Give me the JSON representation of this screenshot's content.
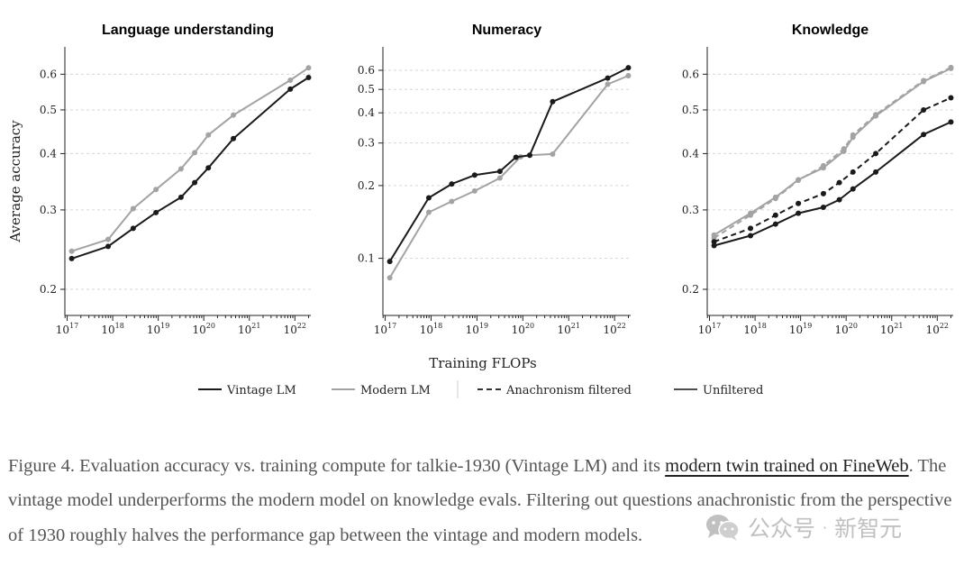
{
  "figure": {
    "shared_xlabel": "Training FLOPs",
    "legend": [
      {
        "label": "Vintage LM",
        "style": "solid",
        "color": "#1a1a1a"
      },
      {
        "label": "Modern LM",
        "style": "solid",
        "color": "#a3a3a3"
      },
      {
        "label": "Anachronism filtered",
        "style": "dashed",
        "color": "#333333"
      },
      {
        "label": "Unfiltered",
        "style": "solid",
        "color": "#4d4d4d"
      }
    ]
  },
  "chart_data": [
    {
      "type": "line",
      "title": "Language understanding",
      "xlabel": "Training FLOPs",
      "ylabel": "Average accuracy",
      "xscale": "log10",
      "yscale": "log",
      "xlim_log10": [
        16.95,
        22.35
      ],
      "ylim": [
        0.175,
        0.69
      ],
      "yticks": [
        0.2,
        0.3,
        0.4,
        0.5,
        0.6
      ],
      "ytick_labels": [
        "0.2",
        "0.3",
        "0.4",
        "0.5",
        "0.6"
      ],
      "xticks_log10": [
        17,
        18,
        19,
        20,
        21,
        22
      ],
      "xtick_base": "10",
      "xtick_exponents": [
        "17",
        "18",
        "19",
        "20",
        "21",
        "22"
      ],
      "grid": "horizontal dashed",
      "series": [
        {
          "name": "Modern LM",
          "color": "#a3a3a3",
          "dash": "solid",
          "x_log10": [
            17.1,
            17.9,
            18.45,
            18.95,
            19.5,
            19.8,
            20.1,
            20.65,
            21.9,
            22.3
          ],
          "values": [
            0.243,
            0.258,
            0.302,
            0.333,
            0.37,
            0.402,
            0.44,
            0.487,
            0.582,
            0.62
          ]
        },
        {
          "name": "Vintage LM",
          "color": "#1a1a1a",
          "dash": "solid",
          "x_log10": [
            17.1,
            17.9,
            18.45,
            18.95,
            19.5,
            19.8,
            20.1,
            20.65,
            21.9,
            22.3
          ],
          "values": [
            0.234,
            0.249,
            0.273,
            0.296,
            0.32,
            0.345,
            0.372,
            0.432,
            0.556,
            0.59
          ]
        }
      ]
    },
    {
      "type": "line",
      "title": "Numeracy",
      "xlabel": "Training FLOPs",
      "ylabel": "",
      "xscale": "log10",
      "yscale": "log",
      "xlim_log10": [
        16.95,
        22.35
      ],
      "ylim": [
        0.058,
        0.75
      ],
      "yticks": [
        0.1,
        0.2,
        0.3,
        0.4,
        0.5,
        0.6
      ],
      "ytick_labels": [
        "0.1",
        "0.2",
        "0.3",
        "0.4",
        "0.5",
        "0.6"
      ],
      "xticks_log10": [
        17,
        18,
        19,
        20,
        21,
        22
      ],
      "xtick_base": "10",
      "xtick_exponents": [
        "17",
        "18",
        "19",
        "20",
        "21",
        "22"
      ],
      "grid": "horizontal dashed",
      "series": [
        {
          "name": "Modern LM",
          "color": "#a3a3a3",
          "dash": "solid",
          "x_log10": [
            17.1,
            17.95,
            18.45,
            18.95,
            19.5,
            19.95,
            20.15,
            20.65,
            21.85,
            22.3
          ],
          "values": [
            0.083,
            0.155,
            0.172,
            0.19,
            0.215,
            0.263,
            0.267,
            0.27,
            0.525,
            0.57
          ]
        },
        {
          "name": "Vintage LM",
          "color": "#1a1a1a",
          "dash": "solid",
          "x_log10": [
            17.1,
            17.95,
            18.45,
            18.95,
            19.5,
            19.85,
            20.15,
            20.65,
            21.85,
            22.3
          ],
          "values": [
            0.097,
            0.178,
            0.203,
            0.221,
            0.229,
            0.262,
            0.267,
            0.445,
            0.557,
            0.615
          ]
        }
      ]
    },
    {
      "type": "line",
      "title": "Knowledge",
      "xlabel": "Training FLOPs",
      "ylabel": "",
      "xscale": "log10",
      "yscale": "log",
      "xlim_log10": [
        16.95,
        22.35
      ],
      "ylim": [
        0.175,
        0.69
      ],
      "yticks": [
        0.2,
        0.3,
        0.4,
        0.5,
        0.6
      ],
      "ytick_labels": [
        "0.2",
        "0.3",
        "0.4",
        "0.5",
        "0.6"
      ],
      "xticks_log10": [
        17,
        18,
        19,
        20,
        21,
        22
      ],
      "xtick_base": "10",
      "xtick_exponents": [
        "17",
        "18",
        "19",
        "20",
        "21",
        "22"
      ],
      "grid": "horizontal dashed",
      "series": [
        {
          "name": "Modern LM, Unfiltered",
          "color": "#a3a3a3",
          "dash": "solid",
          "x_log10": [
            17.1,
            17.9,
            18.45,
            18.95,
            19.5,
            19.95,
            20.15,
            20.65,
            21.7,
            22.3
          ],
          "values": [
            0.264,
            0.295,
            0.32,
            0.35,
            0.372,
            0.405,
            0.435,
            0.485,
            0.578,
            0.618
          ]
        },
        {
          "name": "Modern LM, Anachronism filtered",
          "color": "#a3a3a3",
          "dash": "dashed",
          "x_log10": [
            17.1,
            17.9,
            18.45,
            18.95,
            19.5,
            19.95,
            20.15,
            20.65,
            21.7,
            22.3
          ],
          "values": [
            0.26,
            0.292,
            0.318,
            0.349,
            0.376,
            0.41,
            0.44,
            0.488,
            0.581,
            0.621
          ]
        },
        {
          "name": "Vintage LM, Anachronism filtered",
          "color": "#1a1a1a",
          "dash": "dashed",
          "x_log10": [
            17.1,
            17.9,
            18.45,
            18.95,
            19.5,
            19.85,
            20.15,
            20.65,
            21.7,
            22.3
          ],
          "values": [
            0.255,
            0.273,
            0.292,
            0.31,
            0.326,
            0.345,
            0.364,
            0.4,
            0.5,
            0.532
          ]
        },
        {
          "name": "Vintage LM, Unfiltered",
          "color": "#1a1a1a",
          "dash": "solid",
          "x_log10": [
            17.1,
            17.9,
            18.45,
            18.95,
            19.5,
            19.85,
            20.15,
            20.65,
            21.7,
            22.3
          ],
          "values": [
            0.25,
            0.263,
            0.279,
            0.295,
            0.304,
            0.316,
            0.334,
            0.364,
            0.441,
            0.47
          ]
        }
      ]
    }
  ],
  "caption": {
    "text_before_link": "Figure 4. Evaluation accuracy vs. training compute for talkie-1930 (Vintage LM) and its ",
    "link_text": "modern twin trained on FineWeb",
    "text_after_link": ". The vintage model underperforms the modern model on knowledge evals. Filtering out questions anachronistic from the perspective of 1930 roughly halves the performance gap between the vintage and modern models."
  },
  "watermark": {
    "part1": "公众号",
    "separator": "·",
    "part2": "新智元"
  }
}
